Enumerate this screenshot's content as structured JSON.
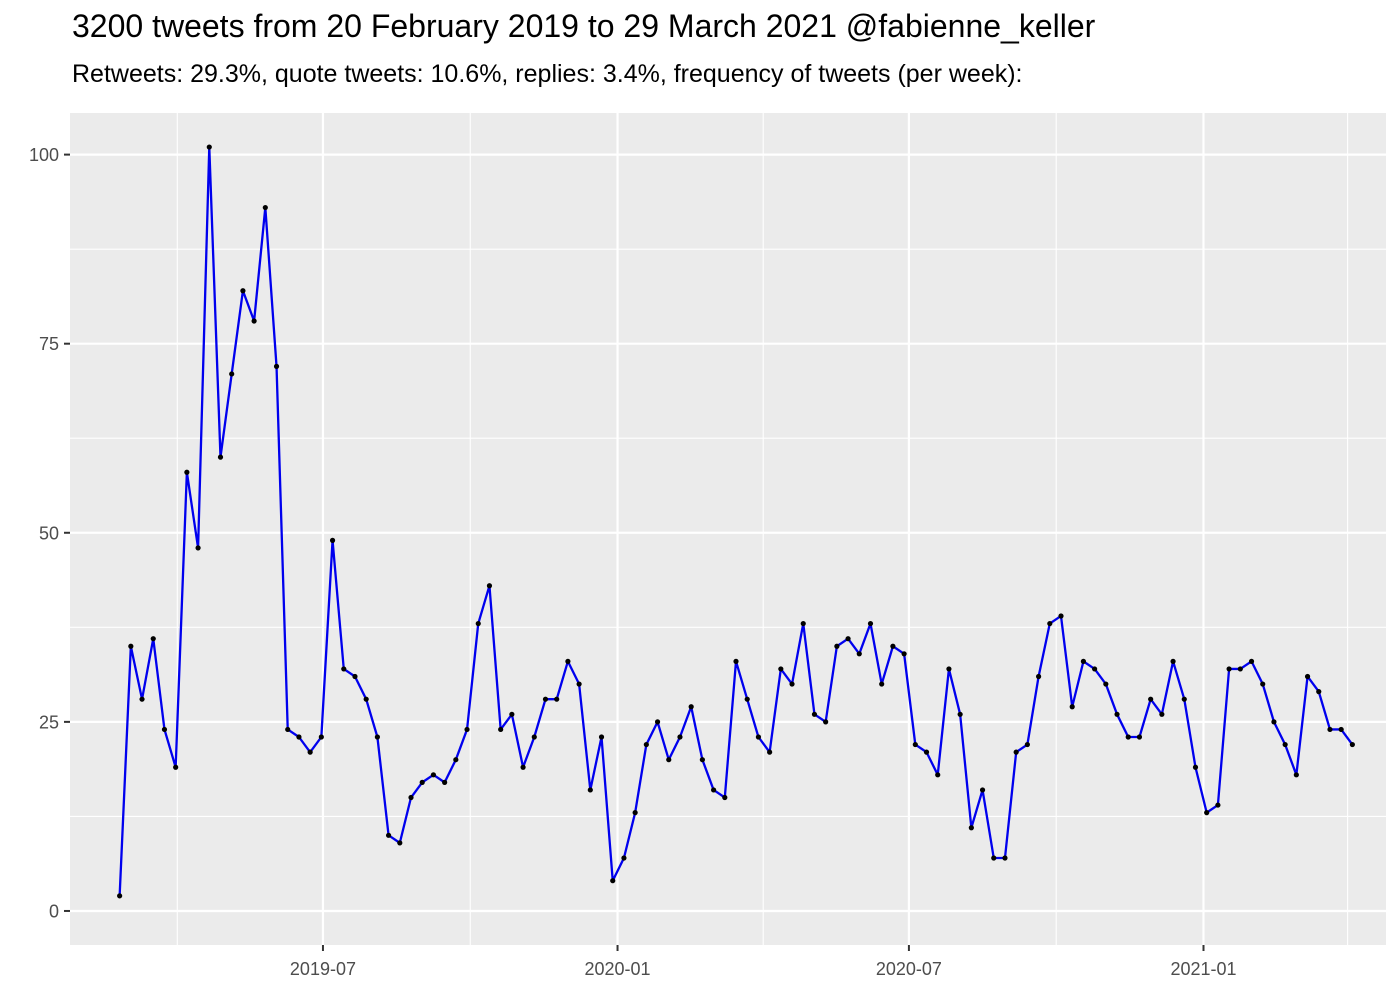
{
  "chart_data": {
    "type": "line",
    "title": "3200 tweets from 20 February 2019 to 29 March 2021 @fabienne_keller",
    "subtitle": "Retweets: 29.3%, quote tweets: 10.6%, replies: 3.4%, frequency of tweets (per week):",
    "xlabel": "",
    "ylabel": "",
    "x_start": "2019-02-24",
    "x_step_days": 7,
    "xlim": [
      "2019-01-24",
      "2021-04-25"
    ],
    "ylim": [
      -4.5,
      105.5
    ],
    "x_ticks": [
      {
        "date": "2019-07-01",
        "label": "2019-07"
      },
      {
        "date": "2020-01-01",
        "label": "2020-01"
      },
      {
        "date": "2020-07-01",
        "label": "2020-07"
      },
      {
        "date": "2021-01-01",
        "label": "2021-01"
      }
    ],
    "x_minor_ticks": [
      "2019-04-01",
      "2019-10-01",
      "2020-04-01",
      "2020-10-01",
      "2021-04-01"
    ],
    "y_ticks": [
      0,
      25,
      50,
      75,
      100
    ],
    "y_minor_ticks": [
      12.5,
      37.5,
      62.5,
      87.5
    ],
    "grid": true,
    "legend": "none",
    "line_color": "#0000EE",
    "point_color": "#000000",
    "panel_color": "#EBEBEB",
    "grid_color": "#FFFFFF",
    "series": [
      {
        "values": [
          2,
          35,
          28,
          36,
          24,
          19,
          58,
          48,
          101,
          60,
          71,
          82,
          78,
          93,
          72,
          24,
          23,
          21,
          23,
          49,
          32,
          31,
          28,
          23,
          10,
          9,
          15,
          17,
          18,
          17,
          20,
          24,
          38,
          43,
          24,
          26,
          19,
          23,
          28,
          28,
          33,
          30,
          16,
          23,
          4,
          7,
          13,
          22,
          25,
          20,
          23,
          27,
          20,
          16,
          15,
          33,
          28,
          23,
          21,
          32,
          30,
          38,
          26,
          25,
          35,
          36,
          34,
          38,
          30,
          35,
          34,
          22,
          21,
          18,
          32,
          26,
          11,
          16,
          7,
          7,
          21,
          22,
          31,
          38,
          39,
          27,
          33,
          32,
          30,
          26,
          23,
          23,
          28,
          26,
          33,
          28,
          19,
          13,
          14,
          32,
          32,
          33,
          30,
          25,
          22,
          18,
          31,
          29,
          24,
          24,
          22
        ]
      }
    ]
  }
}
